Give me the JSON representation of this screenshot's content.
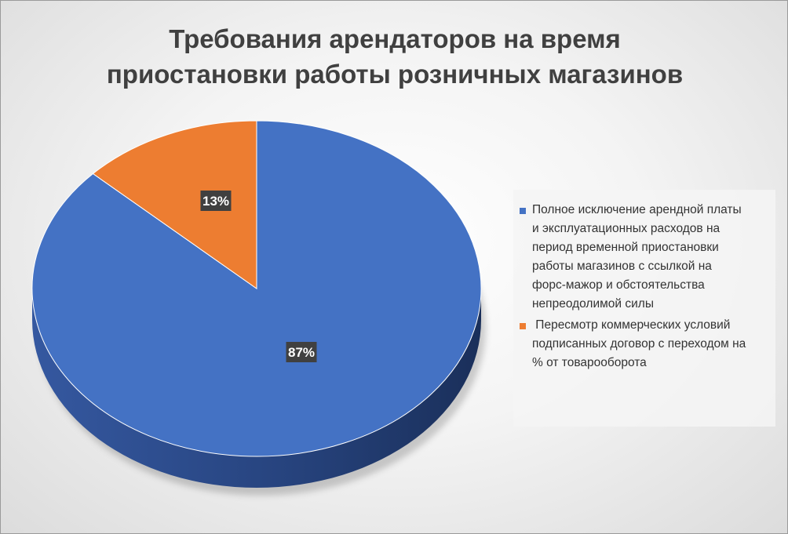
{
  "chart_data": {
    "type": "pie",
    "title": "Требования арендаторов на время приостановки работы розничных магазинов",
    "title_lines": [
      "Требования арендаторов на время",
      "приостановки работы розничных магазинов"
    ],
    "series": [
      {
        "name": "Полное исключение арендной платы и эксплуатационных расходов на период временной приостановки работы  магазинов  с ссылкой на форс-мажор и обстоятельства непреодолимой силы",
        "value": 87,
        "label": "87%",
        "color": "#4472C4",
        "legend_lines": [
          "Полное исключение арендной платы",
          "и эксплуатационных расходов на",
          "период временной приостановки",
          "работы  магазинов  с ссылкой на",
          "форс-мажор и обстоятельства",
          "непреодолимой силы"
        ]
      },
      {
        "name": " Пересмотр коммерческих условий подписанных договор с переходом на % от товарооборота",
        "value": 13,
        "label": "13%",
        "color": "#ED7D31",
        "legend_lines": [
          " Пересмотр коммерческих условий",
          "подписанных договор с переходом на",
          "% от товарооборота"
        ]
      }
    ],
    "style": "3d",
    "legend_position": "right"
  }
}
